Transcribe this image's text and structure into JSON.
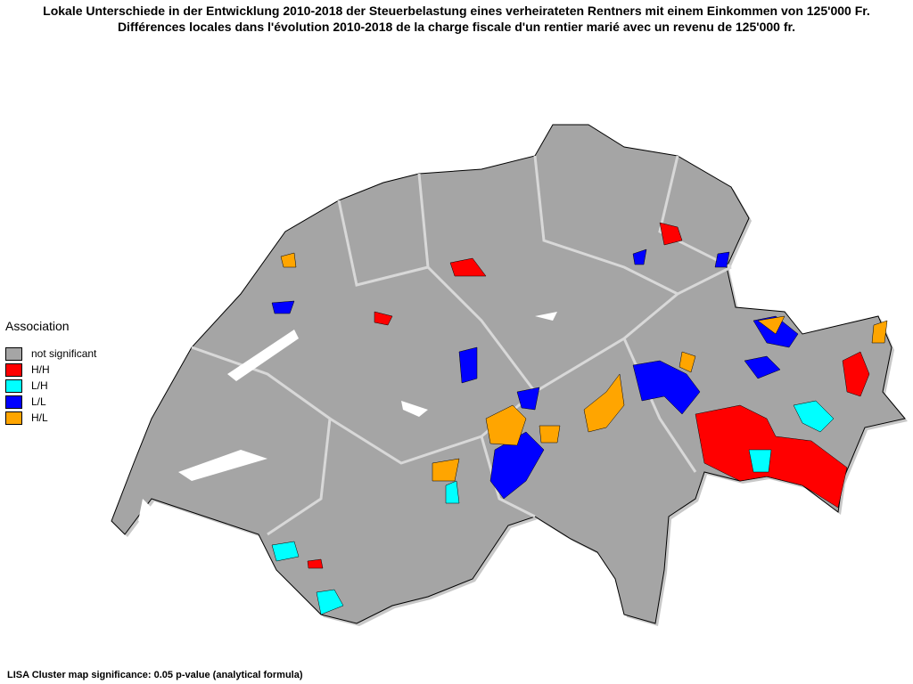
{
  "header": {
    "title_de": "Lokale Unterschiede in der Entwicklung 2010-2018 der Steuerbelastung eines verheirateten Rentners mit einem Einkommen von 125'000 Fr.",
    "title_fr": "Différences locales dans l'évolution 2010-2018 de la charge fiscale d'un rentier marié avec un revenu de 125'000 fr."
  },
  "legend": {
    "title": "Association",
    "items": [
      {
        "label": "not significant",
        "color": "#a5a5a5"
      },
      {
        "label": "H/H",
        "color": "#ff0000"
      },
      {
        "label": "L/H",
        "color": "#00ffff"
      },
      {
        "label": "L/L",
        "color": "#0000ff"
      },
      {
        "label": "H/L",
        "color": "#ffa500"
      }
    ]
  },
  "footer": {
    "text": "LISA Cluster map  significance: 0.05   p-value (analytical formula)"
  }
}
